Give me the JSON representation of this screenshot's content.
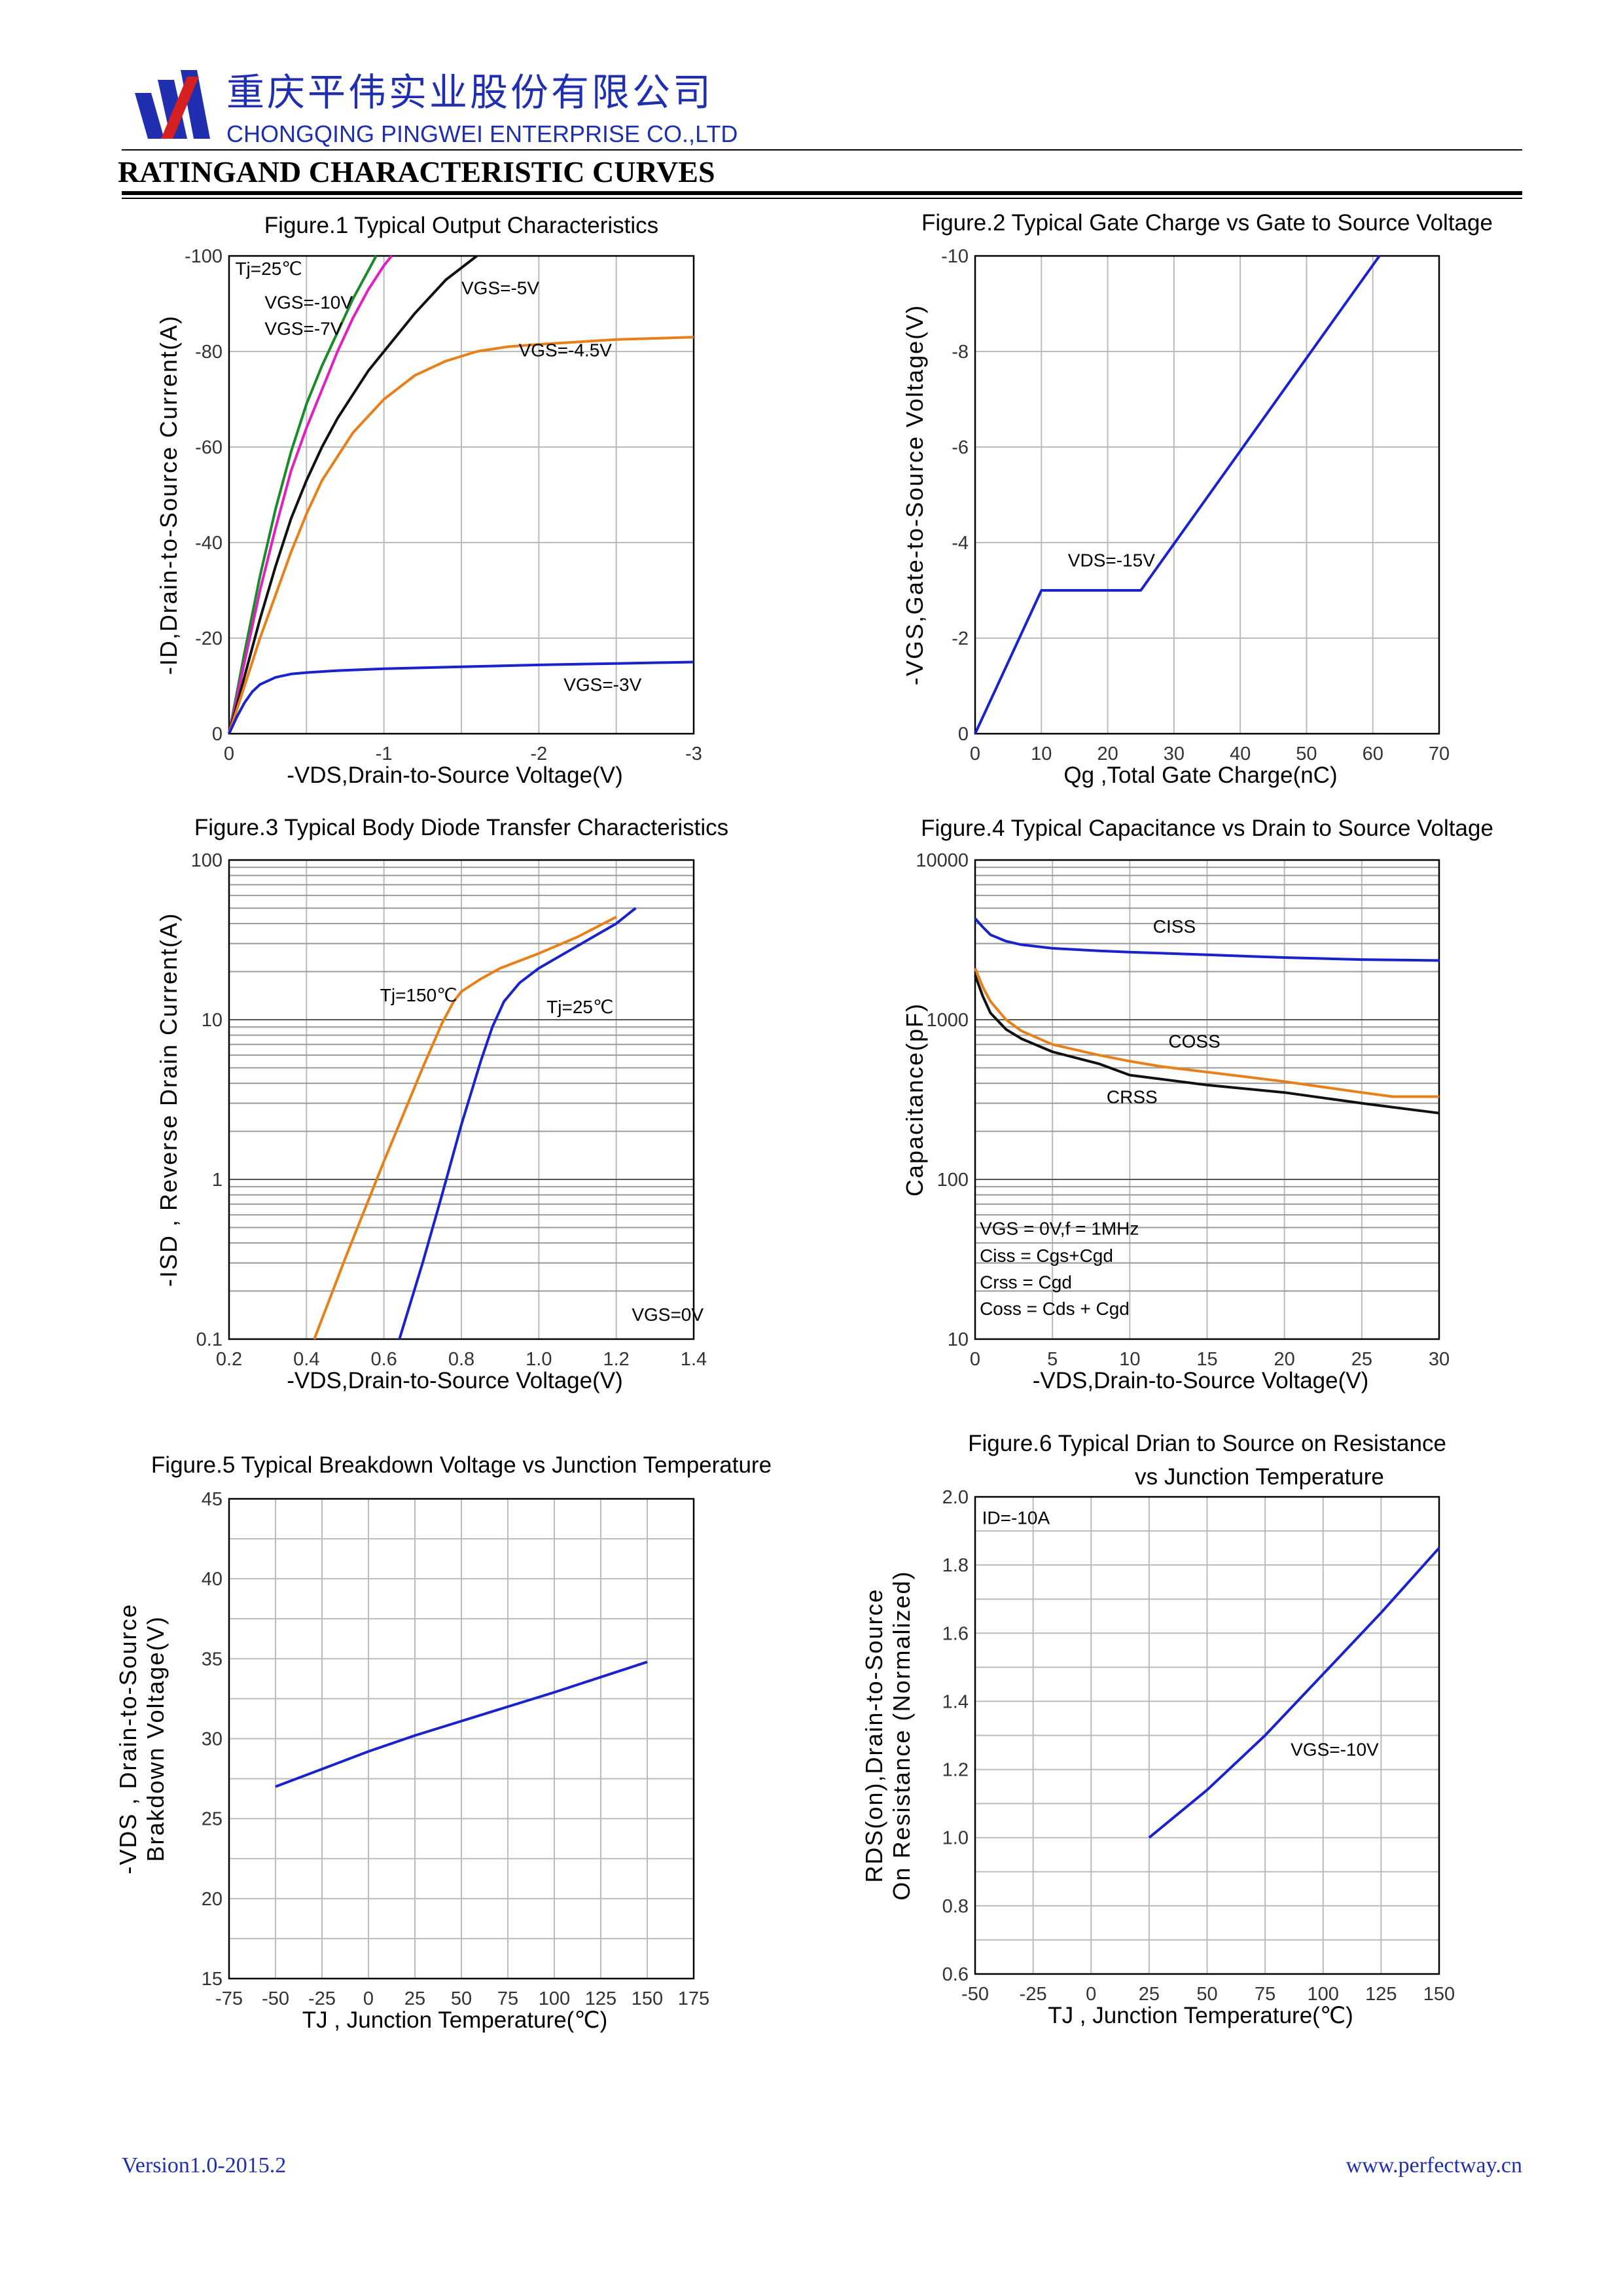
{
  "header": {
    "company_cn": "重庆平伟实业股份有限公司",
    "company_en": "CHONGQING PINGWEI ENTERPRISE CO.,LTD",
    "section_title": "RATINGAND CHARACTERISTIC CURVES",
    "brand_blue": "#1f2fb0",
    "brand_red": "#d42020"
  },
  "footer": {
    "version": "Version1.0-2015.2",
    "website": "www.perfectway.cn"
  },
  "chart_data": [
    {
      "id": "fig1",
      "type": "line",
      "title": "Figure.1 Typical Output Characteristics",
      "xlabel": "-VDS,Drain-to-Source Voltage(V)",
      "ylabel": "-ID,Drain-to-Source Current(A)",
      "xlim": [
        0,
        -3
      ],
      "ylim": [
        0,
        -100
      ],
      "xticks": [
        0,
        -1,
        -2,
        -3
      ],
      "xtick_labels": [
        "0",
        "-1",
        "-2",
        "-3"
      ],
      "yticks": [
        0,
        -20,
        -40,
        -60,
        -80,
        -100
      ],
      "ytick_labels": [
        "0",
        "-20",
        "-40",
        "-60",
        "-80",
        "-100"
      ],
      "grid_x": [
        -0.5,
        -1,
        -1.5,
        -2,
        -2.5
      ],
      "grid_y": [
        -20,
        -40,
        -60,
        -80
      ],
      "annotations": [
        {
          "text": "Tj=25℃",
          "x": -0.04,
          "y": -96
        },
        {
          "text": "VGS=-10V",
          "x": -0.23,
          "y": -89
        },
        {
          "text": "VGS=-7V",
          "x": -0.23,
          "y": -83.5
        },
        {
          "text": "VGS=-5V",
          "x": -1.5,
          "y": -92
        },
        {
          "text": "VGS=-4.5V",
          "x": -1.87,
          "y": -79
        },
        {
          "text": "VGS=-3V",
          "x": -2.16,
          "y": -9
        }
      ],
      "series": [
        {
          "color": "#1a8a2a",
          "x": [
            0,
            -0.1,
            -0.2,
            -0.3,
            -0.4,
            -0.5,
            -0.6,
            -0.7,
            -0.8,
            -0.9,
            -0.95
          ],
          "y": [
            0,
            -17,
            -33,
            -47,
            -59,
            -69,
            -77,
            -84,
            -91,
            -97,
            -100
          ]
        },
        {
          "color": "#e020c0",
          "x": [
            0,
            -0.1,
            -0.2,
            -0.3,
            -0.4,
            -0.5,
            -0.6,
            -0.7,
            -0.8,
            -0.9,
            -1.0,
            -1.05
          ],
          "y": [
            0,
            -15,
            -30,
            -43,
            -55,
            -64,
            -72,
            -80,
            -87,
            -93,
            -98,
            -100
          ]
        },
        {
          "color": "#111111",
          "x": [
            0,
            -0.1,
            -0.2,
            -0.3,
            -0.4,
            -0.5,
            -0.6,
            -0.7,
            -0.8,
            -0.9,
            -1.0,
            -1.2,
            -1.4,
            -1.6
          ],
          "y": [
            0,
            -12,
            -24,
            -35,
            -45,
            -53,
            -60,
            -66,
            -71,
            -76,
            -80,
            -88,
            -95,
            -100
          ]
        },
        {
          "color": "#e8801a",
          "x": [
            0,
            -0.1,
            -0.2,
            -0.3,
            -0.4,
            -0.5,
            -0.6,
            -0.8,
            -1.0,
            -1.2,
            -1.4,
            -1.6,
            -1.8,
            -2.0,
            -2.5,
            -3.0
          ],
          "y": [
            0,
            -10,
            -20,
            -29,
            -38,
            -46,
            -53,
            -63,
            -70,
            -75,
            -78,
            -80,
            -81,
            -81.5,
            -82.5,
            -83
          ]
        },
        {
          "color": "#1a22cc",
          "x": [
            0,
            -0.05,
            -0.1,
            -0.15,
            -0.2,
            -0.3,
            -0.4,
            -0.5,
            -0.7,
            -1.0,
            -1.5,
            -2.0,
            -2.5,
            -3.0
          ],
          "y": [
            0,
            -3.5,
            -6.5,
            -8.8,
            -10.3,
            -11.8,
            -12.5,
            -12.8,
            -13.2,
            -13.6,
            -14,
            -14.4,
            -14.7,
            -15
          ]
        }
      ]
    },
    {
      "id": "fig2",
      "type": "line",
      "title": "Figure.2 Typical Gate Charge vs Gate to Source Voltage",
      "xlabel": "Qg ,Total Gate Charge(nC)",
      "ylabel": "-VGS,Gate-to-Source Voltage(V)",
      "xlim": [
        0,
        70
      ],
      "ylim": [
        0,
        -10
      ],
      "xticks": [
        0,
        10,
        20,
        30,
        40,
        50,
        60,
        70
      ],
      "xtick_labels": [
        "0",
        "10",
        "20",
        "30",
        "40",
        "50",
        "60",
        "70"
      ],
      "yticks": [
        0,
        -2,
        -4,
        -6,
        -8,
        -10
      ],
      "ytick_labels": [
        "0",
        "-2",
        "-4",
        "-6",
        "-8",
        "-10"
      ],
      "grid_x": [
        10,
        20,
        30,
        40,
        50,
        60
      ],
      "grid_y": [
        -2,
        -4,
        -6,
        -8
      ],
      "annotations": [
        {
          "text": "VDS=-15V",
          "x": 14,
          "y": -3.5
        }
      ],
      "series": [
        {
          "color": "#1a22cc",
          "x": [
            0,
            10,
            25,
            61
          ],
          "y": [
            0,
            -3,
            -3,
            -10
          ]
        }
      ]
    },
    {
      "id": "fig3",
      "type": "line",
      "title": "Figure.3 Typical Body Diode Transfer Characteristics",
      "xlabel": "-VDS,Drain-to-Source Voltage(V)",
      "ylabel": "-ISD , Reverse Drain Current(A)",
      "xlim": [
        0.2,
        1.4
      ],
      "ylim": [
        0.1,
        100
      ],
      "yscale": "log",
      "xticks": [
        0.2,
        0.4,
        0.6,
        0.8,
        1.0,
        1.2,
        1.4
      ],
      "xtick_labels": [
        "0.2",
        "0.4",
        "0.6",
        "0.8",
        "1.0",
        "1.2",
        "1.4"
      ],
      "yticks": [
        0.1,
        1,
        10,
        100
      ],
      "ytick_labels": [
        "0.1",
        "1",
        "10",
        "100"
      ],
      "grid_x": [
        0.4,
        0.6,
        0.8,
        1.0,
        1.2
      ],
      "annotations": [
        {
          "text": "Tj=150℃",
          "x": 0.59,
          "y": 13
        },
        {
          "text": "Tj=25℃",
          "x": 1.02,
          "y": 11
        },
        {
          "text": "VGS=0V",
          "x": 1.24,
          "y": 0.13
        }
      ],
      "series": [
        {
          "color": "#e8801a",
          "x": [
            0.42,
            0.5,
            0.6,
            0.7,
            0.75,
            0.78,
            0.8,
            0.85,
            0.9,
            1.0,
            1.1,
            1.2
          ],
          "y": [
            0.1,
            0.32,
            1.3,
            5,
            9.5,
            13,
            15,
            18,
            21,
            26,
            33,
            44
          ]
        },
        {
          "color": "#1a22cc",
          "x": [
            0.64,
            0.7,
            0.75,
            0.8,
            0.85,
            0.88,
            0.91,
            0.95,
            1.0,
            1.1,
            1.2,
            1.25
          ],
          "y": [
            0.1,
            0.3,
            0.8,
            2.2,
            5.5,
            9,
            13,
            17,
            21,
            29,
            40,
            50
          ]
        }
      ]
    },
    {
      "id": "fig4",
      "type": "line",
      "title": "Figure.4 Typical Capacitance vs Drain to Source Voltage",
      "xlabel": "-VDS,Drain-to-Source Voltage(V)",
      "ylabel": "Capacitance(pF)",
      "xlim": [
        0,
        30
      ],
      "ylim": [
        10,
        10000
      ],
      "yscale": "log",
      "xticks": [
        0,
        5,
        10,
        15,
        20,
        25,
        30
      ],
      "xtick_labels": [
        "0",
        "5",
        "10",
        "15",
        "20",
        "25",
        "30"
      ],
      "yticks": [
        10,
        100,
        1000,
        10000
      ],
      "ytick_labels": [
        "10",
        "100",
        "1000",
        "10000"
      ],
      "grid_x": [
        5,
        10,
        15,
        20,
        25
      ],
      "annotations": [
        {
          "text": "CISS",
          "x": 11.5,
          "y": 3500
        },
        {
          "text": "COSS",
          "x": 12.5,
          "y": 670
        },
        {
          "text": "CRSS",
          "x": 8.5,
          "y": 300
        },
        {
          "text": "VGS   = 0V,f = 1MHz",
          "x": 0.3,
          "y": 45
        },
        {
          "text": "Ciss = Cgs+Cgd",
          "x": 0.3,
          "y": 30.5
        },
        {
          "text": "Crss = Cgd",
          "x": 0.3,
          "y": 20.8
        },
        {
          "text": "Coss = Cds + Cgd",
          "x": 0.3,
          "y": 14.2
        }
      ],
      "series": [
        {
          "name": "CISS",
          "color": "#1a22cc",
          "x": [
            0,
            0.5,
            1,
            2,
            3,
            5,
            8,
            10,
            15,
            20,
            25,
            30
          ],
          "y": [
            4300,
            3800,
            3400,
            3100,
            2950,
            2800,
            2700,
            2650,
            2550,
            2450,
            2380,
            2350
          ]
        },
        {
          "name": "COSS",
          "color": "#e8801a",
          "x": [
            0,
            0.5,
            1,
            2,
            3,
            5,
            8,
            10,
            12,
            15,
            20,
            25,
            27,
            30
          ],
          "y": [
            2100,
            1600,
            1300,
            1000,
            850,
            700,
            600,
            550,
            510,
            470,
            410,
            350,
            330,
            330
          ]
        },
        {
          "name": "CRSS",
          "color": "#111111",
          "x": [
            0,
            0.5,
            1,
            2,
            3,
            5,
            8,
            10,
            15,
            20,
            25,
            30
          ],
          "y": [
            1900,
            1400,
            1100,
            870,
            760,
            630,
            530,
            450,
            390,
            350,
            300,
            260
          ]
        }
      ]
    },
    {
      "id": "fig5",
      "type": "line",
      "title": "Figure.5 Typical Breakdown Voltage vs Junction Temperature",
      "xlabel": "TJ , Junction Temperature(℃)",
      "ylabel": "-VDS , Drain-to-Source Brakdown Voltage(V)",
      "ylabel_lines": [
        "-VDS , Drain-to-Source",
        "Brakdown Voltage(V)"
      ],
      "xlim": [
        -75,
        175
      ],
      "ylim": [
        15,
        45
      ],
      "xticks": [
        -75,
        -50,
        -25,
        0,
        25,
        50,
        75,
        100,
        125,
        150,
        175
      ],
      "xtick_labels": [
        "-75",
        "-50",
        "-25",
        "0",
        "25",
        "50",
        "75",
        "100",
        "125",
        "150",
        "175"
      ],
      "yticks": [
        15,
        20,
        25,
        30,
        35,
        40,
        45
      ],
      "ytick_labels": [
        "15",
        "20",
        "25",
        "30",
        "35",
        "40",
        "45"
      ],
      "grid_x": [
        -50,
        -25,
        0,
        25,
        50,
        75,
        100,
        125,
        150
      ],
      "grid_y": [
        17.5,
        20,
        22.5,
        25,
        27.5,
        30,
        32.5,
        35,
        37.5,
        40,
        42.5
      ],
      "annotations": [],
      "series": [
        {
          "color": "#1a22cc",
          "x": [
            -50,
            0,
            25,
            50,
            100,
            150
          ],
          "y": [
            27,
            29.2,
            30.2,
            31.1,
            32.9,
            34.8
          ]
        }
      ]
    },
    {
      "id": "fig6",
      "type": "line",
      "title": "Figure.6 Typical Drian to Source on Resistance",
      "subtitle": "vs Junction Temperature",
      "xlabel": "TJ , Junction Temperature(℃)",
      "ylabel": "RDS(on),Drain-to-Source On Resistance (Normalized)",
      "ylabel_lines": [
        "RDS(on),Drain-to-Source",
        "On Resistance (Normalized)"
      ],
      "xlim": [
        -50,
        150
      ],
      "ylim": [
        0.6,
        2.0
      ],
      "xticks": [
        -50,
        -25,
        0,
        25,
        50,
        75,
        100,
        125,
        150
      ],
      "xtick_labels": [
        "-50",
        "-25",
        "0",
        "25",
        "50",
        "75",
        "100",
        "125",
        "150"
      ],
      "yticks": [
        0.6,
        0.8,
        1.0,
        1.2,
        1.4,
        1.6,
        1.8,
        2.0
      ],
      "ytick_labels": [
        "0.6",
        "0.8",
        "1.0",
        "1.2",
        "1.4",
        "1.6",
        "1.8",
        "2.0"
      ],
      "grid_x": [
        -25,
        0,
        25,
        50,
        75,
        100,
        125
      ],
      "grid_y": [
        0.7,
        0.8,
        0.9,
        1.0,
        1.1,
        1.2,
        1.3,
        1.4,
        1.5,
        1.6,
        1.7,
        1.8,
        1.9
      ],
      "annotations": [
        {
          "text": "ID=-10A",
          "x": -47,
          "y": 1.92
        },
        {
          "text": "VGS=-10V",
          "x": 86,
          "y": 1.24
        }
      ],
      "series": [
        {
          "color": "#1a22cc",
          "x": [
            25,
            50,
            75,
            100,
            125,
            150
          ],
          "y": [
            1.0,
            1.14,
            1.3,
            1.48,
            1.66,
            1.85
          ]
        }
      ]
    }
  ]
}
